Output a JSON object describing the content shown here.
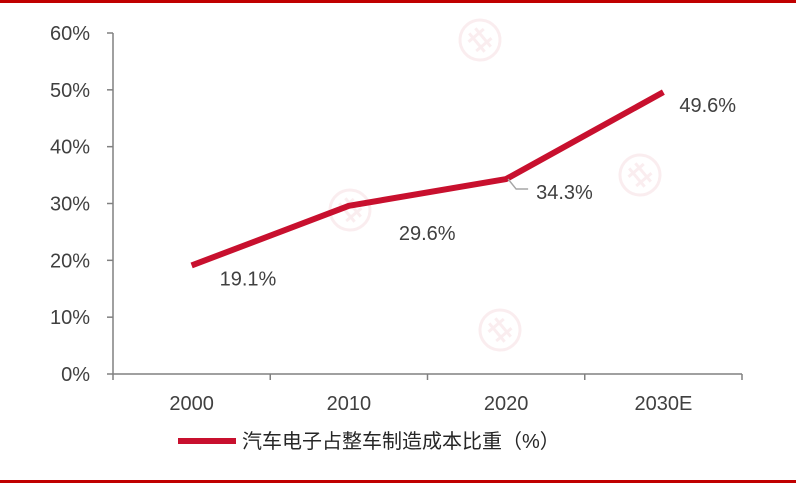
{
  "chart_data": {
    "type": "line",
    "categories": [
      "2000",
      "2010",
      "2020",
      "2030E"
    ],
    "series": [
      {
        "name": "汽车电子占整车制造成本比重（%）",
        "values": [
          19.1,
          29.6,
          34.3,
          49.6
        ],
        "color": "#c8102e"
      }
    ],
    "data_labels": [
      "19.1%",
      "29.6%",
      "34.3%",
      "49.6%"
    ],
    "y_ticks": [
      "0%",
      "10%",
      "20%",
      "30%",
      "40%",
      "50%",
      "60%"
    ],
    "ylim": [
      0,
      60
    ],
    "grid": false,
    "legend": "bottom-center",
    "watermark": "行行查 HangHangCha"
  }
}
